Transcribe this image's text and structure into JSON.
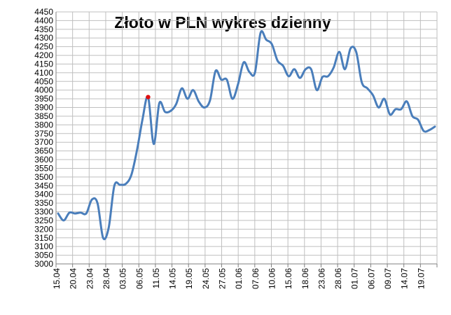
{
  "chart_data": {
    "type": "line",
    "title": "Złoto w PLN wykres dzienny",
    "xlabel": "",
    "ylabel": "",
    "ylim": [
      3000,
      4450
    ],
    "ytick_step": 50,
    "grid": {
      "horizontal": true,
      "vertical": true
    },
    "legend": "none",
    "x_tick_labels": [
      "15.04",
      "20.04",
      "23.04",
      "28.04",
      "03.05",
      "06.05",
      "11.05",
      "14.05",
      "19.05",
      "24.05",
      "27.05",
      "01.06",
      "07.06",
      "10.06",
      "15.06",
      "18.06",
      "23.06",
      "28.06",
      "01.07",
      "06.07",
      "09.07",
      "14.07",
      "19.07"
    ],
    "series": [
      {
        "values": [
          3290,
          3250,
          3295,
          3290,
          3295,
          3290,
          3370,
          3350,
          3150,
          3210,
          3450,
          3455,
          3460,
          3510,
          3650,
          3830,
          3960,
          3690,
          3925,
          3875,
          3880,
          3920,
          4010,
          3950,
          4000,
          3935,
          3900,
          3940,
          4110,
          4060,
          4060,
          3950,
          4035,
          4160,
          4105,
          4100,
          4330,
          4290,
          4265,
          4170,
          4140,
          4080,
          4120,
          4070,
          4120,
          4120,
          4000,
          4075,
          4080,
          4130,
          4220,
          4120,
          4240,
          4220,
          4045,
          4010,
          3970,
          3900,
          3950,
          3860,
          3890,
          3890,
          3935,
          3850,
          3830,
          3765,
          3770,
          3790
        ],
        "highlight_index": 16
      }
    ],
    "colors": {
      "line": "#4a7ebb",
      "highlight": "#e01010",
      "grid": "#bfbfbf",
      "axis": "#808080"
    }
  }
}
